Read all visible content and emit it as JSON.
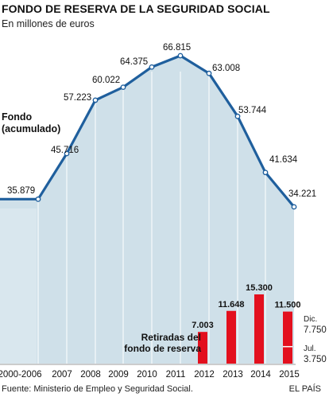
{
  "header": {
    "title": "FONDO DE RESERVA DE LA SEGURIDAD SOCIAL",
    "subtitle": "En millones de euros"
  },
  "footer": {
    "source": "Fuente: Ministerio de Empleo y Seguridad Social.",
    "brand": "EL PAÍS"
  },
  "colors": {
    "area_fill": "#cfe0e9",
    "line": "#1f5f9d",
    "bar": "#e3101e",
    "grid": "#ffffff"
  },
  "chart_data": [
    {
      "type": "area",
      "title": "FONDO DE RESERVA DE LA SEGURIDAD SOCIAL",
      "subtitle": "En millones de euros",
      "series_label": "Fondo\n(acumulado)",
      "categories": [
        "2000-2006",
        "2007",
        "2008",
        "2009",
        "2010",
        "2011",
        "2012",
        "2013",
        "2014",
        "2015"
      ],
      "values": [
        35879,
        45716,
        57223,
        60022,
        64375,
        66815,
        63008,
        53744,
        41634,
        34221
      ],
      "value_labels": [
        "35.879",
        "45.716",
        "57.223",
        "60.022",
        "64.375",
        "66.815",
        "63.008",
        "53.744",
        "41.634",
        "34.221"
      ],
      "grid": true
    },
    {
      "type": "bar",
      "series_label": "Retiradas del\nfondo de reserva",
      "categories": [
        "2012",
        "2013",
        "2014",
        "2015"
      ],
      "values": [
        7003,
        11648,
        15300,
        11500
      ],
      "value_labels": [
        "7.003",
        "11.648",
        "15.300",
        "11.500"
      ],
      "breakdown_2015": [
        {
          "label": "Dic.",
          "value": 7750,
          "value_label": "7.750"
        },
        {
          "label": "Jul.",
          "value": 3750,
          "value_label": "3.750"
        }
      ]
    }
  ]
}
